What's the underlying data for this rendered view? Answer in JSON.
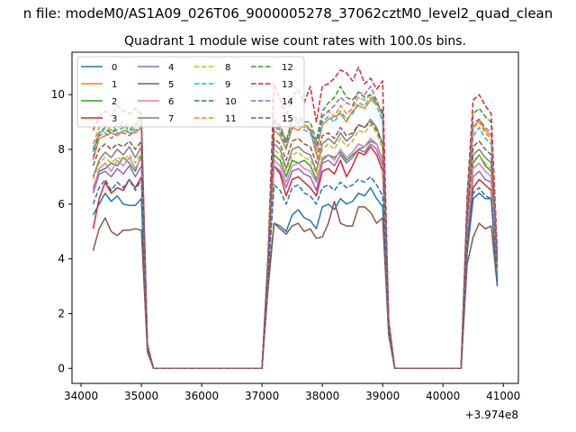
{
  "figure": {
    "suptitle": "n file: modeM0/AS1A09_026T06_9000005278_37062cztM0_level2_quad_clean"
  },
  "chart_data": {
    "type": "line",
    "title": "Quadrant 1 module wise count rates with 100.0s bins.",
    "xlabel": "",
    "ylabel": "",
    "x_offset_label": "+3.974e8",
    "xlim": [
      33850,
      41250
    ],
    "ylim": [
      -0.55,
      11.55
    ],
    "xticks": [
      34000,
      35000,
      36000,
      37000,
      38000,
      39000,
      40000,
      41000
    ],
    "yticks": [
      0,
      2,
      4,
      6,
      8,
      10
    ],
    "legend": {
      "placement": "top-left",
      "columns": 4
    },
    "x": [
      34200,
      34300,
      34400,
      34500,
      34600,
      34700,
      34800,
      34900,
      35000,
      35100,
      35200,
      35300,
      35400,
      35500,
      35600,
      35700,
      35800,
      35900,
      36000,
      36100,
      36200,
      36300,
      36400,
      36500,
      36600,
      36700,
      36800,
      36900,
      37000,
      37100,
      37200,
      37300,
      37400,
      37500,
      37600,
      37700,
      37800,
      37900,
      38000,
      38100,
      38200,
      38300,
      38400,
      38500,
      38600,
      38700,
      38800,
      38900,
      39000,
      39100,
      39200,
      39300,
      39400,
      39500,
      39600,
      39700,
      39800,
      39900,
      40000,
      40100,
      40200,
      40300,
      40400,
      40500,
      40600,
      40700,
      40800,
      40900
    ],
    "series": [
      {
        "name": "0",
        "color": "#1f77b4",
        "dash": false,
        "gaps": [
          5.6,
          6.0,
          6.4,
          6.1,
          6.3,
          6.0,
          5.95,
          5.95,
          6.2,
          0.8,
          0.0,
          0.0,
          0.0,
          0.0,
          0.0,
          0.0,
          0.0,
          0.0,
          0.0,
          0.0,
          0.0,
          0.0,
          0.0,
          0.0,
          0.0,
          0.0,
          0.0,
          0.0,
          0.0,
          3.2,
          5.3,
          5.2,
          5.0,
          5.6,
          5.8,
          5.5,
          5.4,
          5.1,
          5.9,
          6.0,
          5.8,
          6.2,
          6.0,
          6.1,
          6.4,
          6.3,
          6.6,
          6.2,
          5.9,
          1.3,
          0.0,
          0.0,
          0.0,
          0.0,
          0.0,
          0.0,
          0.0,
          0.0,
          0.0,
          0.0,
          0.0,
          0.0,
          4.2,
          6.2,
          6.4,
          6.2,
          6.2,
          3.0
        ]
      },
      {
        "name": "1",
        "color": "#ff7f0e",
        "dash": false,
        "gaps": [
          7.6,
          8.4,
          8.5,
          8.6,
          8.5,
          8.7,
          8.6,
          8.6,
          8.8,
          0.8,
          0.0,
          0.0,
          0.0,
          0.0,
          0.0,
          0.0,
          0.0,
          0.0,
          0.0,
          0.0,
          0.0,
          0.0,
          0.0,
          0.0,
          0.0,
          0.0,
          0.0,
          0.0,
          0.0,
          3.9,
          8.7,
          8.5,
          8.0,
          8.8,
          8.7,
          8.9,
          8.7,
          7.8,
          8.9,
          9.1,
          9.2,
          9.3,
          9.0,
          9.4,
          9.6,
          9.5,
          9.8,
          9.7,
          9.3,
          1.6,
          0.0,
          0.0,
          0.0,
          0.0,
          0.0,
          0.0,
          0.0,
          0.0,
          0.0,
          0.0,
          0.0,
          0.0,
          5.6,
          8.8,
          9.1,
          8.7,
          8.5,
          4.0
        ]
      },
      {
        "name": "2",
        "color": "#2ca02c",
        "dash": false,
        "gaps": [
          6.6,
          7.2,
          7.3,
          7.5,
          7.4,
          7.7,
          7.5,
          7.2,
          7.8,
          0.8,
          0.0,
          0.0,
          0.0,
          0.0,
          0.0,
          0.0,
          0.0,
          0.0,
          0.0,
          0.0,
          0.0,
          0.0,
          0.0,
          0.0,
          0.0,
          0.0,
          0.0,
          0.0,
          0.0,
          3.6,
          7.8,
          7.6,
          7.0,
          7.6,
          7.5,
          7.6,
          7.4,
          6.9,
          7.6,
          7.8,
          7.7,
          7.9,
          7.6,
          7.8,
          8.0,
          8.1,
          8.3,
          8.2,
          7.6,
          1.5,
          0.0,
          0.0,
          0.0,
          0.0,
          0.0,
          0.0,
          0.0,
          0.0,
          0.0,
          0.0,
          0.0,
          0.0,
          5.0,
          7.5,
          7.8,
          7.4,
          7.2,
          3.5
        ]
      },
      {
        "name": "3",
        "color": "#d62728",
        "dash": false,
        "gaps": [
          5.1,
          6.2,
          6.8,
          6.4,
          6.6,
          6.5,
          6.9,
          6.6,
          7.0,
          0.8,
          0.0,
          0.0,
          0.0,
          0.0,
          0.0,
          0.0,
          0.0,
          0.0,
          0.0,
          0.0,
          0.0,
          0.0,
          0.0,
          0.0,
          0.0,
          0.0,
          0.0,
          0.0,
          0.0,
          3.5,
          7.4,
          7.1,
          6.3,
          6.9,
          7.0,
          6.8,
          6.6,
          6.3,
          7.2,
          7.3,
          7.1,
          7.6,
          7.0,
          7.4,
          7.9,
          7.8,
          8.1,
          7.8,
          7.2,
          1.4,
          0.0,
          0.0,
          0.0,
          0.0,
          0.0,
          0.0,
          0.0,
          0.0,
          0.0,
          0.0,
          0.0,
          0.0,
          4.5,
          6.6,
          6.9,
          6.7,
          6.5,
          3.2
        ]
      },
      {
        "name": "4",
        "color": "#9467bd",
        "dash": false,
        "gaps": [
          6.4,
          7.1,
          7.2,
          7.0,
          7.3,
          7.1,
          7.4,
          7.0,
          7.4,
          0.8,
          0.0,
          0.0,
          0.0,
          0.0,
          0.0,
          0.0,
          0.0,
          0.0,
          0.0,
          0.0,
          0.0,
          0.0,
          0.0,
          0.0,
          0.0,
          0.0,
          0.0,
          0.0,
          0.0,
          3.5,
          7.4,
          7.2,
          6.6,
          7.2,
          7.3,
          7.1,
          7.0,
          6.5,
          7.5,
          7.6,
          7.4,
          7.8,
          7.5,
          7.7,
          8.0,
          7.9,
          8.2,
          8.0,
          7.4,
          1.4,
          0.0,
          0.0,
          0.0,
          0.0,
          0.0,
          0.0,
          0.0,
          0.0,
          0.0,
          0.0,
          0.0,
          0.0,
          4.8,
          7.0,
          7.2,
          6.9,
          6.8,
          3.3
        ]
      },
      {
        "name": "5",
        "color": "#8c564b",
        "dash": false,
        "gaps": [
          4.3,
          5.1,
          5.5,
          5.0,
          4.85,
          5.05,
          5.05,
          5.1,
          5.05,
          0.6,
          0.0,
          0.0,
          0.0,
          0.0,
          0.0,
          0.0,
          0.0,
          0.0,
          0.0,
          0.0,
          0.0,
          0.0,
          0.0,
          0.0,
          0.0,
          0.0,
          0.0,
          0.0,
          0.0,
          2.9,
          5.3,
          5.1,
          4.9,
          5.2,
          5.3,
          5.0,
          5.1,
          4.75,
          4.8,
          5.3,
          6.1,
          5.3,
          5.2,
          5.2,
          5.9,
          5.9,
          5.7,
          5.3,
          5.5,
          1.2,
          0.0,
          0.0,
          0.0,
          0.0,
          0.0,
          0.0,
          0.0,
          0.0,
          0.0,
          0.0,
          0.0,
          0.0,
          3.8,
          4.8,
          5.3,
          5.1,
          5.2,
          3.0
        ]
      },
      {
        "name": "6",
        "color": "#e377c2",
        "dash": false,
        "gaps": [
          6.5,
          7.3,
          7.5,
          7.2,
          7.6,
          7.4,
          7.7,
          7.3,
          7.7,
          0.8,
          0.0,
          0.0,
          0.0,
          0.0,
          0.0,
          0.0,
          0.0,
          0.0,
          0.0,
          0.0,
          0.0,
          0.0,
          0.0,
          0.0,
          0.0,
          0.0,
          0.0,
          0.0,
          0.0,
          3.5,
          7.6,
          7.4,
          6.8,
          7.4,
          7.5,
          7.3,
          7.2,
          6.8,
          7.7,
          7.8,
          7.6,
          8.0,
          7.7,
          7.9,
          8.2,
          8.1,
          8.4,
          8.2,
          7.6,
          1.5,
          0.0,
          0.0,
          0.0,
          0.0,
          0.0,
          0.0,
          0.0,
          0.0,
          0.0,
          0.0,
          0.0,
          0.0,
          5.0,
          7.3,
          7.5,
          7.2,
          7.0,
          3.4
        ]
      },
      {
        "name": "7",
        "color": "#7f7f7f",
        "dash": false,
        "gaps": [
          7.0,
          7.6,
          7.9,
          7.7,
          8.0,
          7.8,
          8.1,
          7.7,
          8.1,
          0.8,
          0.0,
          0.0,
          0.0,
          0.0,
          0.0,
          0.0,
          0.0,
          0.0,
          0.0,
          0.0,
          0.0,
          0.0,
          0.0,
          0.0,
          0.0,
          0.0,
          0.0,
          0.0,
          0.0,
          3.7,
          8.2,
          8.0,
          7.3,
          8.0,
          8.1,
          7.9,
          7.8,
          7.2,
          8.2,
          8.4,
          8.2,
          8.6,
          8.3,
          8.5,
          8.9,
          8.8,
          9.1,
          8.8,
          8.2,
          1.6,
          0.0,
          0.0,
          0.0,
          0.0,
          0.0,
          0.0,
          0.0,
          0.0,
          0.0,
          0.0,
          0.0,
          0.0,
          5.3,
          7.8,
          8.0,
          7.7,
          7.5,
          3.6
        ]
      },
      {
        "name": "8",
        "color": "#bcbd22",
        "dash": true,
        "gaps": [
          6.9,
          7.5,
          7.7,
          7.5,
          7.7,
          7.6,
          7.8,
          7.5,
          7.9,
          0.8,
          0.0,
          0.0,
          0.0,
          0.0,
          0.0,
          0.0,
          0.0,
          0.0,
          0.0,
          0.0,
          0.0,
          0.0,
          0.0,
          0.0,
          0.0,
          0.0,
          0.0,
          0.0,
          0.0,
          3.7,
          8.0,
          7.8,
          7.2,
          7.8,
          7.9,
          7.7,
          7.6,
          7.1,
          8.0,
          8.2,
          8.0,
          8.4,
          8.1,
          8.3,
          8.7,
          8.6,
          8.9,
          8.6,
          8.0,
          1.5,
          0.0,
          0.0,
          0.0,
          0.0,
          0.0,
          0.0,
          0.0,
          0.0,
          0.0,
          0.0,
          0.0,
          0.0,
          5.2,
          7.6,
          7.8,
          7.5,
          7.3,
          3.5
        ]
      },
      {
        "name": "9",
        "color": "#17becf",
        "dash": true,
        "gaps": [
          7.9,
          8.6,
          8.7,
          8.6,
          8.7,
          8.8,
          8.6,
          8.8,
          8.9,
          0.8,
          0.0,
          0.0,
          0.0,
          0.0,
          0.0,
          0.0,
          0.0,
          0.0,
          0.0,
          0.0,
          0.0,
          0.0,
          0.0,
          0.0,
          0.0,
          0.0,
          0.0,
          0.0,
          0.0,
          3.9,
          8.9,
          8.6,
          8.1,
          8.8,
          8.9,
          8.7,
          8.6,
          8.0,
          9.0,
          9.2,
          9.0,
          9.4,
          9.1,
          9.3,
          9.7,
          9.6,
          9.9,
          9.6,
          9.0,
          1.7,
          0.0,
          0.0,
          0.0,
          0.0,
          0.0,
          0.0,
          0.0,
          0.0,
          0.0,
          0.0,
          0.0,
          0.0,
          5.8,
          8.5,
          8.8,
          8.4,
          8.2,
          3.9
        ]
      },
      {
        "name": "10",
        "color": "#1f77b4",
        "dash": true,
        "gaps": [
          6.0,
          6.6,
          6.9,
          6.5,
          6.8,
          6.6,
          6.9,
          6.5,
          6.9,
          0.7,
          0.0,
          0.0,
          0.0,
          0.0,
          0.0,
          0.0,
          0.0,
          0.0,
          0.0,
          0.0,
          0.0,
          0.0,
          0.0,
          0.0,
          0.0,
          0.0,
          0.0,
          0.0,
          0.0,
          3.3,
          6.7,
          6.5,
          6.0,
          6.6,
          6.7,
          6.4,
          6.3,
          6.0,
          6.6,
          6.7,
          6.5,
          6.8,
          6.6,
          6.7,
          6.9,
          6.8,
          7.0,
          6.7,
          6.3,
          1.3,
          0.0,
          0.0,
          0.0,
          0.0,
          0.0,
          0.0,
          0.0,
          0.0,
          0.0,
          0.0,
          0.0,
          0.0,
          4.5,
          6.4,
          6.6,
          6.3,
          6.2,
          3.1
        ]
      },
      {
        "name": "11",
        "color": "#ff7f0e",
        "dash": true,
        "gaps": [
          8.2,
          8.8,
          8.9,
          8.7,
          8.9,
          9.0,
          8.8,
          9.0,
          9.1,
          0.8,
          0.0,
          0.0,
          0.0,
          0.0,
          0.0,
          0.0,
          0.0,
          0.0,
          0.0,
          0.0,
          0.0,
          0.0,
          0.0,
          0.0,
          0.0,
          0.0,
          0.0,
          0.0,
          0.0,
          4.0,
          9.1,
          8.9,
          8.3,
          9.0,
          9.1,
          8.9,
          8.8,
          8.2,
          9.2,
          9.4,
          9.2,
          9.6,
          9.3,
          9.5,
          9.9,
          9.8,
          10.0,
          9.8,
          9.2,
          1.7,
          0.0,
          0.0,
          0.0,
          0.0,
          0.0,
          0.0,
          0.0,
          0.0,
          0.0,
          0.0,
          0.0,
          0.0,
          5.9,
          8.8,
          9.0,
          8.6,
          8.4,
          4.0
        ]
      },
      {
        "name": "12",
        "color": "#2ca02c",
        "dash": true,
        "gaps": [
          8.0,
          8.6,
          8.8,
          8.6,
          8.8,
          8.9,
          8.7,
          8.9,
          9.0,
          0.8,
          0.0,
          0.0,
          0.0,
          0.0,
          0.0,
          0.0,
          0.0,
          0.0,
          0.0,
          0.0,
          0.0,
          0.0,
          0.0,
          0.0,
          0.0,
          0.0,
          0.0,
          0.0,
          0.0,
          4.0,
          9.1,
          8.8,
          8.3,
          9.1,
          9.2,
          9.0,
          9.0,
          8.3,
          9.4,
          9.7,
          9.9,
          10.3,
          9.9,
          9.8,
          10.1,
          9.9,
          10.0,
          9.7,
          9.4,
          1.7,
          0.0,
          0.0,
          0.0,
          0.0,
          0.0,
          0.0,
          0.0,
          0.0,
          0.0,
          0.0,
          0.0,
          0.0,
          6.0,
          9.3,
          9.5,
          9.2,
          9.0,
          4.2
        ]
      },
      {
        "name": "13",
        "color": "#d62728",
        "dash": true,
        "gaps": [
          8.7,
          9.2,
          9.4,
          9.2,
          9.6,
          9.4,
          9.3,
          9.5,
          9.3,
          0.9,
          0.0,
          0.0,
          0.0,
          0.0,
          0.0,
          0.0,
          0.0,
          0.0,
          0.0,
          0.0,
          0.0,
          0.0,
          0.0,
          0.0,
          0.0,
          0.0,
          0.0,
          0.0,
          0.0,
          4.2,
          10.4,
          9.8,
          9.2,
          9.9,
          10.2,
          9.7,
          10.3,
          9.0,
          10.3,
          10.4,
          10.6,
          10.9,
          10.8,
          10.5,
          11.0,
          10.4,
          10.6,
          10.2,
          10.5,
          1.8,
          0.0,
          0.0,
          0.0,
          0.0,
          0.0,
          0.0,
          0.0,
          0.0,
          0.0,
          0.0,
          0.0,
          0.0,
          6.3,
          9.8,
          10.0,
          9.6,
          9.3,
          4.3
        ]
      },
      {
        "name": "14",
        "color": "#9467bd",
        "dash": true,
        "gaps": [
          7.7,
          8.5,
          8.6,
          8.4,
          8.6,
          8.6,
          8.5,
          8.7,
          8.8,
          0.8,
          0.0,
          0.0,
          0.0,
          0.0,
          0.0,
          0.0,
          0.0,
          0.0,
          0.0,
          0.0,
          0.0,
          0.0,
          0.0,
          0.0,
          0.0,
          0.0,
          0.0,
          0.0,
          0.0,
          3.9,
          9.0,
          8.7,
          8.2,
          8.8,
          9.0,
          8.8,
          8.7,
          8.1,
          9.2,
          9.4,
          9.6,
          9.9,
          9.7,
          9.6,
          10.1,
          10.0,
          10.3,
          9.8,
          9.2,
          1.7,
          0.0,
          0.0,
          0.0,
          0.0,
          0.0,
          0.0,
          0.0,
          0.0,
          0.0,
          0.0,
          0.0,
          0.0,
          5.9,
          9.0,
          9.1,
          8.8,
          8.6,
          4.0
        ]
      },
      {
        "name": "15",
        "color": "#8c564b",
        "dash": true,
        "gaps": [
          7.4,
          8.0,
          8.2,
          8.0,
          8.2,
          8.1,
          8.3,
          8.0,
          8.3,
          0.8,
          0.0,
          0.0,
          0.0,
          0.0,
          0.0,
          0.0,
          0.0,
          0.0,
          0.0,
          0.0,
          0.0,
          0.0,
          0.0,
          0.0,
          0.0,
          0.0,
          0.0,
          0.0,
          0.0,
          3.8,
          8.4,
          8.2,
          7.6,
          8.3,
          8.4,
          8.2,
          8.1,
          7.5,
          8.5,
          8.6,
          8.4,
          8.8,
          8.5,
          8.6,
          8.9,
          8.8,
          9.0,
          8.7,
          8.2,
          1.6,
          0.0,
          0.0,
          0.0,
          0.0,
          0.0,
          0.0,
          0.0,
          0.0,
          0.0,
          0.0,
          0.0,
          0.0,
          5.4,
          8.1,
          8.3,
          8.0,
          7.8,
          3.7
        ]
      }
    ]
  }
}
